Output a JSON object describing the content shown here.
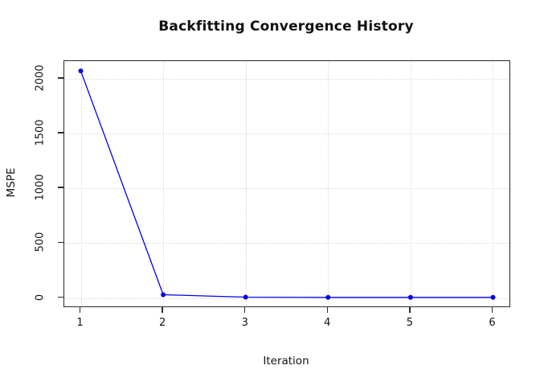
{
  "chart_data": {
    "type": "line",
    "title": "Backfitting Convergence History",
    "xlabel": "Iteration",
    "ylabel": "MSPE",
    "x": [
      1,
      2,
      3,
      4,
      5,
      6
    ],
    "series": [
      {
        "name": "MSPE",
        "values": [
          2070,
          30,
          8,
          6,
          6,
          6
        ]
      }
    ],
    "xticks": [
      "1",
      "2",
      "3",
      "4",
      "5",
      "6"
    ],
    "xtick_values": [
      1,
      2,
      3,
      4,
      5,
      6
    ],
    "yticks": [
      "0",
      "500",
      "1000",
      "1500",
      "2000"
    ],
    "ytick_values": [
      0,
      500,
      1000,
      1500,
      2000
    ],
    "xlim": [
      0.8,
      6.2
    ],
    "ylim": [
      -76,
      2160
    ],
    "grid": true,
    "grid_style": "dotted",
    "legend_position": "none",
    "line_color": "#0000EE",
    "marker": "filled-circle",
    "marker_color": "#0000EE",
    "grid_color": "#d9d9d9",
    "axis_color": "#2b2b2b",
    "background": "#ffffff"
  }
}
